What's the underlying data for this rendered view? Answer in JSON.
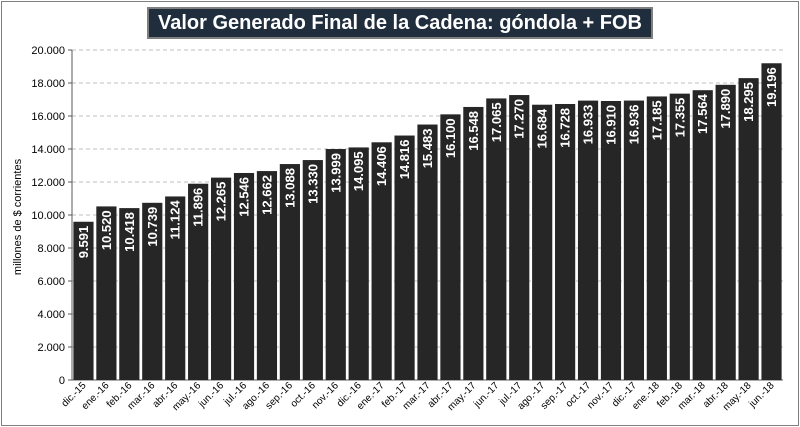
{
  "chart_data": {
    "type": "bar",
    "title": "Valor Generado Final de la Cadena: góndola + FOB",
    "xlabel": "",
    "ylabel": "millones de $ corrientes",
    "ylim": [
      0,
      20000
    ],
    "yticks": [
      0,
      2000,
      4000,
      6000,
      8000,
      10000,
      12000,
      14000,
      16000,
      18000,
      20000
    ],
    "ytick_labels": [
      "0",
      "2.000",
      "4.000",
      "6.000",
      "8.000",
      "10.000",
      "12.000",
      "14.000",
      "16.000",
      "18.000",
      "20.000"
    ],
    "grid": true,
    "bar_color": "#262626",
    "label_color": "#ffffff",
    "categories": [
      "dic.-15",
      "ene.-16",
      "feb.-16",
      "mar.-16",
      "abr.-16",
      "may.-16",
      "jun.-16",
      "jul.-16",
      "ago.-16",
      "sep.-16",
      "oct.-16",
      "nov.-16",
      "dic.-16",
      "ene.-17",
      "feb.-17",
      "mar.-17",
      "abr.-17",
      "may.-17",
      "jun.-17",
      "jul.-17",
      "ago.-17",
      "sep.-17",
      "oct.-17",
      "nov.-17",
      "dic.-17",
      "ene.-18",
      "feb.-18",
      "mar.-18",
      "abr.-18",
      "may.-18",
      "jun.-18"
    ],
    "values": [
      9591,
      10520,
      10418,
      10739,
      11124,
      11896,
      12265,
      12546,
      12662,
      13088,
      13330,
      13999,
      14095,
      14406,
      14816,
      15483,
      16100,
      16548,
      17065,
      17270,
      16684,
      16728,
      16933,
      16910,
      16936,
      17185,
      17355,
      17564,
      17890,
      18295,
      19196
    ],
    "value_labels": [
      "9.591",
      "10.520",
      "10.418",
      "10.739",
      "11.124",
      "11.896",
      "12.265",
      "12.546",
      "12.662",
      "13.088",
      "13.330",
      "13.999",
      "14.095",
      "14.406",
      "14.816",
      "15.483",
      "16.100",
      "16.548",
      "17.065",
      "17.270",
      "16.684",
      "16.728",
      "16.933",
      "16.910",
      "16.936",
      "17.185",
      "17.355",
      "17.564",
      "17.890",
      "18.295",
      "19.196"
    ]
  }
}
